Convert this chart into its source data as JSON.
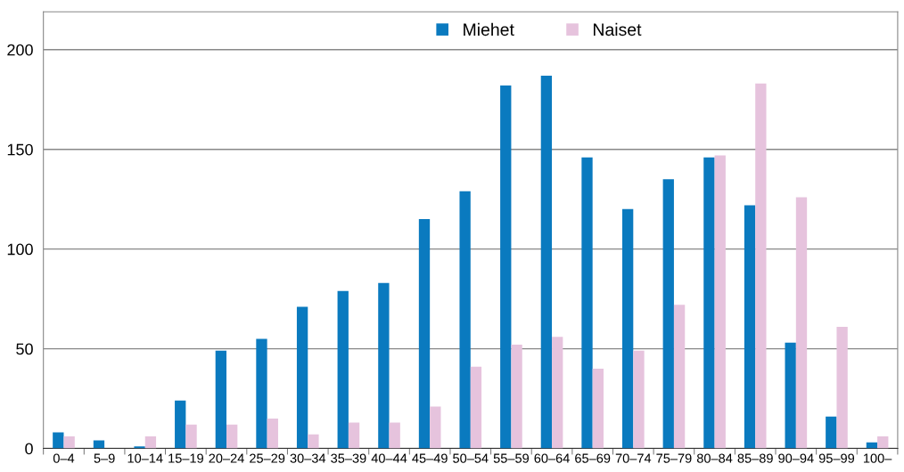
{
  "chart_data": {
    "type": "bar",
    "categories": [
      "0–4",
      "5–9",
      "10–14",
      "15–19",
      "20–24",
      "25–29",
      "30–34",
      "35–39",
      "40–44",
      "45–49",
      "50–54",
      "55–59",
      "60–64",
      "65–69",
      "70–74",
      "75–79",
      "80–84",
      "85–89",
      "90–94",
      "95–99",
      "100–"
    ],
    "series": [
      {
        "name": "Miehet",
        "color": "#0a7abf",
        "values": [
          8,
          4,
          1,
          24,
          49,
          55,
          71,
          79,
          83,
          115,
          129,
          182,
          187,
          146,
          120,
          135,
          146,
          122,
          53,
          16,
          3
        ]
      },
      {
        "name": "Naiset",
        "color": "#e6c3dd",
        "values": [
          6,
          0,
          6,
          12,
          12,
          15,
          7,
          13,
          13,
          21,
          41,
          52,
          56,
          40,
          49,
          72,
          147,
          183,
          126,
          61,
          6
        ]
      }
    ],
    "ylim": [
      0,
      219
    ],
    "yticks": [
      0,
      50,
      100,
      150,
      200
    ],
    "grid": "y",
    "legend": "top"
  }
}
